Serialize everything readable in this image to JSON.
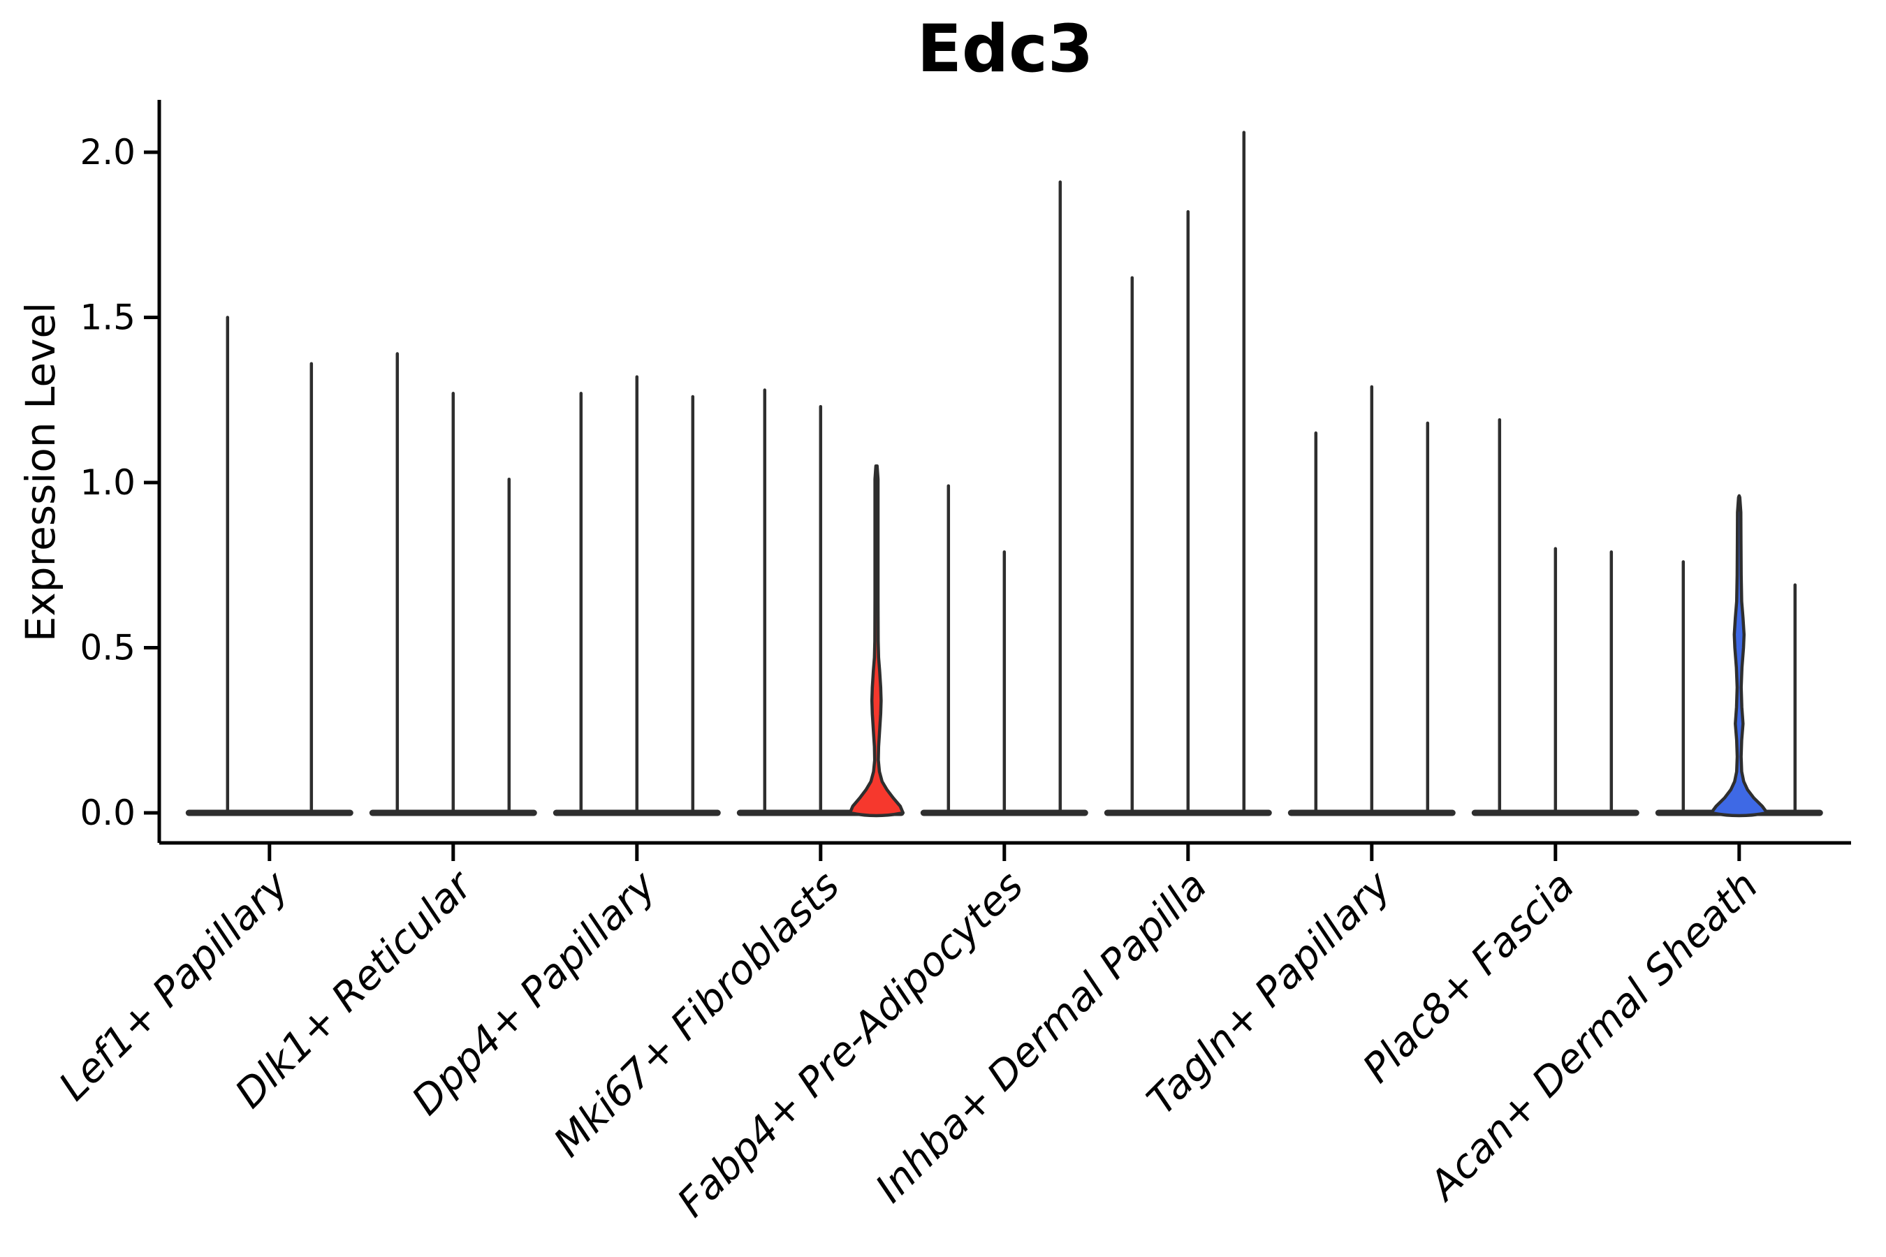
{
  "chart_data": {
    "type": "violin",
    "title": "Edc3",
    "xlabel": "",
    "ylabel": "Expression Level",
    "ylim": [
      -0.09,
      2.16
    ],
    "yticks": [
      0.0,
      0.5,
      1.0,
      1.5,
      2.0
    ],
    "ytick_labels": [
      "0.0",
      "0.5",
      "1.0",
      "1.5",
      "2.0"
    ],
    "grid": false,
    "legend_position": "none",
    "colors": {
      "background": "#ffffff",
      "violin_outline": "#2e2e2e",
      "axis": "#000000",
      "red_fill": "#f6382d",
      "blue_fill": "#3e69e5"
    },
    "categories": [
      {
        "label": "Lef1+ Papillary",
        "violins": [
          {
            "max": 1.5,
            "fill": "none"
          },
          {
            "max": 1.36,
            "fill": "none"
          }
        ]
      },
      {
        "label": "Dlk1+ Reticular",
        "violins": [
          {
            "max": 1.39,
            "fill": "none"
          },
          {
            "max": 1.27,
            "fill": "none"
          },
          {
            "max": 1.01,
            "fill": "none"
          }
        ]
      },
      {
        "label": "Dpp4+ Papillary",
        "violins": [
          {
            "max": 1.27,
            "fill": "none"
          },
          {
            "max": 1.32,
            "fill": "none"
          },
          {
            "max": 1.26,
            "fill": "none"
          }
        ]
      },
      {
        "label": "Mki67+ Fibroblasts",
        "violins": [
          {
            "max": 1.28,
            "fill": "none"
          },
          {
            "max": 1.23,
            "fill": "none"
          },
          {
            "max": 1.05,
            "fill": "red",
            "profile": "red"
          }
        ]
      },
      {
        "label": "Fabp4+ Pre-Adipocytes",
        "violins": [
          {
            "max": 0.99,
            "fill": "none"
          },
          {
            "max": 0.79,
            "fill": "none"
          },
          {
            "max": 1.91,
            "fill": "none"
          }
        ]
      },
      {
        "label": "Inhba+ Dermal Papilla",
        "violins": [
          {
            "max": 1.62,
            "fill": "none"
          },
          {
            "max": 1.82,
            "fill": "none"
          },
          {
            "max": 2.06,
            "fill": "none"
          }
        ]
      },
      {
        "label": "Tagln+ Papillary",
        "violins": [
          {
            "max": 1.15,
            "fill": "none"
          },
          {
            "max": 1.29,
            "fill": "none"
          },
          {
            "max": 1.18,
            "fill": "none"
          }
        ]
      },
      {
        "label": "Plac8+ Fascia",
        "violins": [
          {
            "max": 1.19,
            "fill": "none"
          },
          {
            "max": 0.8,
            "fill": "none"
          },
          {
            "max": 0.79,
            "fill": "none"
          }
        ]
      },
      {
        "label": "Acan+ Dermal Sheath",
        "violins": [
          {
            "max": 0.76,
            "fill": "none"
          },
          {
            "max": 0.96,
            "fill": "blue",
            "profile": "blue"
          },
          {
            "max": 0.69,
            "fill": "none"
          }
        ]
      }
    ],
    "filled_violin_profiles": {
      "red": [
        [
          0.0,
          38
        ],
        [
          0.02,
          34
        ],
        [
          0.045,
          24
        ],
        [
          0.07,
          15
        ],
        [
          0.095,
          8
        ],
        [
          0.125,
          4.2
        ],
        [
          0.16,
          2.6
        ],
        [
          0.2,
          3.0
        ],
        [
          0.25,
          4.5
        ],
        [
          0.3,
          6.0
        ],
        [
          0.34,
          6.6
        ],
        [
          0.38,
          6.0
        ],
        [
          0.43,
          4.5
        ],
        [
          0.47,
          3.0
        ],
        [
          0.52,
          2.4
        ],
        [
          0.65,
          2.2
        ],
        [
          0.85,
          2.2
        ],
        [
          1.01,
          2.2
        ],
        [
          1.05,
          0.9
        ]
      ],
      "blue": [
        [
          0.0,
          40
        ],
        [
          0.02,
          33
        ],
        [
          0.045,
          21
        ],
        [
          0.07,
          12
        ],
        [
          0.095,
          6.5
        ],
        [
          0.125,
          3.6
        ],
        [
          0.17,
          2.8
        ],
        [
          0.22,
          3.6
        ],
        [
          0.27,
          5.5
        ],
        [
          0.32,
          3.8
        ],
        [
          0.38,
          2.9
        ],
        [
          0.44,
          4.0
        ],
        [
          0.5,
          6.2
        ],
        [
          0.54,
          7.0
        ],
        [
          0.59,
          5.5
        ],
        [
          0.64,
          3.6
        ],
        [
          0.72,
          2.9
        ],
        [
          0.82,
          2.6
        ],
        [
          0.91,
          2.4
        ],
        [
          0.955,
          0.9
        ]
      ]
    }
  }
}
